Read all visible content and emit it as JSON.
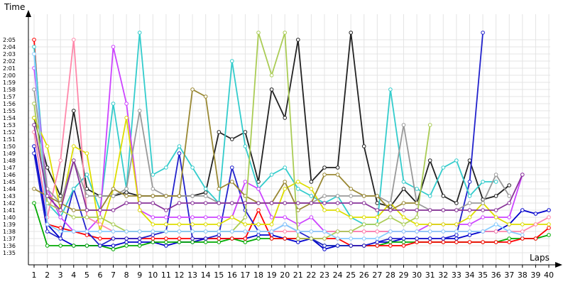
{
  "chart_data": {
    "type": "line",
    "title": "",
    "xlabel": "Laps",
    "ylabel": "Time",
    "xlim": [
      1,
      40
    ],
    "ylim_seconds": [
      95,
      126
    ],
    "x_ticks": [
      "1",
      "2",
      "3",
      "4",
      "5",
      "6",
      "7",
      "8",
      "9",
      "10",
      "11",
      "12",
      "13",
      "14",
      "15",
      "16",
      "17",
      "18",
      "19",
      "20",
      "21",
      "22",
      "23",
      "24",
      "25",
      "26",
      "27",
      "28",
      "29",
      "30",
      "31",
      "32",
      "33",
      "34",
      "35",
      "36",
      "37",
      "38",
      "39",
      "40"
    ],
    "y_ticks": [
      "1:35",
      "1:36",
      "1:37",
      "1:38",
      "1:39",
      "1:40",
      "1:41",
      "1:42",
      "1:43",
      "1:44",
      "1:45",
      "1:46",
      "1:47",
      "1:48",
      "1:49",
      "1:50",
      "1:51",
      "1:52",
      "1:53",
      "1:54",
      "1:55",
      "1:56",
      "1:57",
      "1:58",
      "1:59",
      "2:00",
      "2:01",
      "2:02",
      "2:03",
      "2:04",
      "2:05"
    ],
    "grid": true,
    "legend": "none",
    "series": [
      {
        "color": "#0000cc",
        "x": [
          1,
          2,
          3,
          4,
          5,
          6,
          7,
          8,
          9,
          10,
          11,
          12,
          13,
          14,
          15,
          16,
          17,
          18,
          19,
          20,
          21,
          22,
          23,
          24,
          25,
          26,
          27,
          28,
          29,
          30,
          31,
          32,
          33,
          34,
          35,
          36,
          37,
          38,
          39,
          40
        ],
        "y": [
          110,
          99,
          97,
          96,
          96,
          96,
          96,
          96.5,
          96.5,
          96.5,
          96,
          96.5,
          96.5,
          97,
          97,
          97,
          97,
          97.5,
          97.5,
          97,
          96.5,
          97,
          95.5,
          96,
          96,
          96,
          96.5,
          96.5,
          97,
          97,
          97,
          97,
          97,
          97.5,
          98,
          98,
          99,
          101,
          100.5,
          101
        ]
      },
      {
        "color": "#00aa00",
        "x": [
          1,
          2,
          3,
          4,
          5,
          6,
          7,
          8,
          9,
          10,
          11,
          12,
          13,
          14,
          15,
          16,
          17,
          18,
          19,
          20,
          21,
          22,
          23,
          24,
          25,
          26,
          27,
          28,
          29,
          30,
          31,
          32,
          33,
          34,
          35,
          36,
          37,
          38,
          39,
          40
        ],
        "y": [
          102,
          96,
          96,
          96,
          96,
          96,
          95.5,
          96,
          96,
          96.5,
          96.5,
          96.5,
          96.5,
          96.5,
          96.5,
          97,
          96.5,
          97,
          97,
          97,
          97,
          97,
          96,
          96,
          96,
          96,
          96,
          96.5,
          96.5,
          96.5,
          96.5,
          96.5,
          96.5,
          96.5,
          96.5,
          96.5,
          97,
          97,
          97,
          97.5
        ]
      },
      {
        "color": "#ff0000",
        "x": [
          1,
          2,
          3,
          4,
          5,
          6,
          7,
          8,
          9,
          10,
          11,
          12,
          13,
          14,
          15,
          16,
          17,
          18,
          19,
          20,
          21,
          22,
          23,
          24,
          25,
          26,
          27,
          28,
          29,
          30,
          31,
          32,
          33,
          34,
          35,
          36,
          37,
          38,
          39,
          40
        ],
        "y": [
          125,
          99,
          98.5,
          98,
          97.5,
          97,
          97,
          97,
          97,
          97,
          97,
          97,
          97,
          97,
          97,
          97,
          97,
          101,
          97,
          97,
          97,
          97,
          97,
          97,
          96,
          96,
          96,
          96,
          96,
          96.5,
          96.5,
          96.5,
          96.5,
          96.5,
          96.5,
          96.5,
          96.5,
          97,
          97,
          98.5
        ]
      },
      {
        "color": "#222222",
        "x": [
          1,
          2,
          3,
          4,
          5,
          6,
          7,
          8,
          9,
          10,
          11,
          12,
          13,
          14,
          15,
          16,
          17,
          18,
          19,
          20,
          21,
          22,
          23,
          24,
          25,
          26,
          27,
          28,
          29,
          30,
          31,
          32,
          33,
          34,
          35,
          36,
          37,
          38
        ],
        "y": [
          114,
          107,
          103,
          115,
          104,
          103,
          103,
          103.5,
          103,
          103,
          103,
          103,
          103,
          103.5,
          112,
          111,
          112,
          105,
          118,
          114,
          125,
          105,
          107,
          107,
          126,
          110,
          102,
          101.5,
          104,
          102,
          108,
          103,
          102,
          108,
          102.5,
          103,
          104.5,
          null
        ]
      },
      {
        "color": "#2222cc",
        "x": [
          1,
          2,
          3,
          4,
          5,
          6,
          7,
          8,
          9,
          10,
          11,
          12,
          13,
          14,
          15,
          16,
          17,
          18,
          19,
          20,
          21,
          22,
          23,
          24,
          25,
          26,
          27,
          28,
          29,
          30,
          31,
          32,
          33,
          34,
          35
        ],
        "y": [
          109,
          98,
          97,
          104,
          98,
          96,
          97,
          97,
          97,
          97.5,
          98,
          109,
          97,
          97,
          97.5,
          107,
          101,
          98,
          98,
          99,
          98,
          97,
          96,
          96,
          96,
          96,
          96.5,
          97,
          97,
          97,
          97,
          97,
          97.5,
          105,
          126
        ]
      },
      {
        "color": "#33cccc",
        "x": [
          1,
          2,
          3,
          4,
          5,
          6,
          7,
          8,
          9,
          10,
          11,
          12,
          13,
          14,
          15,
          16,
          17,
          18,
          19,
          20,
          21,
          22,
          23,
          24,
          25,
          26,
          27,
          28,
          29,
          30,
          31,
          32,
          33,
          34,
          35,
          36
        ],
        "y": [
          124,
          102,
          100,
          104,
          106,
          101,
          116,
          104,
          126,
          106,
          107,
          110,
          107,
          104,
          102,
          122,
          110,
          104,
          106,
          107,
          104,
          103,
          102,
          103,
          100,
          99,
          99,
          118,
          105,
          104,
          103,
          107,
          108,
          103,
          105,
          105
        ]
      },
      {
        "color": "#cc44ff",
        "x": [
          1,
          2,
          3,
          4,
          5,
          6,
          7,
          8,
          9,
          10,
          11,
          12,
          13,
          14,
          15,
          16,
          17,
          18,
          19,
          20,
          21,
          22,
          23,
          24,
          25,
          26,
          27,
          28,
          29,
          30,
          31,
          32,
          33,
          34,
          35,
          36,
          37,
          38
        ],
        "y": [
          121,
          104,
          100,
          98,
          98,
          100,
          124,
          116,
          101,
          100,
          100,
          100,
          100,
          100,
          100,
          100,
          105,
          104,
          100,
          100,
          99,
          100,
          98,
          98,
          98,
          98,
          98,
          98,
          98,
          98,
          99,
          99,
          99,
          99,
          100,
          100,
          100,
          106
        ]
      },
      {
        "color": "#dddd00",
        "x": [
          1,
          2,
          3,
          4,
          5,
          6,
          7,
          8,
          9,
          10,
          11,
          12,
          13,
          14,
          15,
          16,
          17,
          18,
          19,
          20,
          21,
          22,
          23,
          24,
          25,
          26,
          27,
          28,
          29,
          30,
          31,
          32,
          33,
          34,
          35,
          36,
          37,
          38,
          39,
          40
        ],
        "y": [
          114,
          110,
          101,
          110,
          109,
          98,
          104,
          114,
          101,
          99,
          99,
          99,
          99,
          99,
          99,
          100,
          99,
          99,
          99,
          104,
          105,
          104,
          101,
          101,
          100,
          100,
          100,
          102,
          100,
          99,
          99,
          99,
          99,
          100,
          102,
          100,
          99,
          99,
          99,
          99
        ]
      },
      {
        "color": "#ff88aa",
        "x": [
          1,
          2,
          3,
          4,
          5,
          6,
          7,
          8,
          9,
          10,
          11,
          12,
          13,
          14,
          15,
          16,
          17,
          18,
          19,
          20,
          21,
          22,
          23,
          24,
          25,
          26,
          27,
          28,
          29,
          30,
          31,
          32,
          33,
          34,
          35,
          36,
          37,
          38,
          39,
          40
        ],
        "y": [
          112,
          100,
          108,
          125,
          100,
          99,
          98,
          98,
          98,
          98,
          98,
          98,
          98,
          98,
          98,
          98,
          98,
          98,
          98,
          98,
          98,
          98,
          98,
          98,
          98,
          98,
          98,
          98,
          98,
          98,
          98,
          98,
          98,
          98,
          98,
          98,
          98,
          98,
          99,
          100
        ]
      },
      {
        "color": "#999999",
        "x": [
          1,
          2,
          3,
          4,
          5,
          6,
          7,
          8,
          9,
          10,
          11,
          12,
          13,
          14,
          15,
          16,
          17,
          18,
          19,
          20,
          21,
          22,
          23,
          24,
          25,
          26,
          27,
          28,
          29,
          30,
          31,
          32,
          33,
          34,
          35,
          36,
          37
        ],
        "y": [
          118,
          104,
          102,
          108,
          103,
          103,
          103,
          104,
          115,
          104,
          103,
          103,
          103,
          103,
          102,
          102,
          102,
          102,
          102,
          102,
          102,
          102,
          103,
          103,
          103,
          103,
          103,
          102,
          113,
          102,
          101,
          101,
          101,
          102,
          102,
          106,
          103
        ]
      },
      {
        "color": "#998833",
        "x": [
          1,
          2,
          3,
          4,
          5,
          6,
          7,
          8,
          9,
          10,
          11,
          12,
          13,
          14,
          15,
          16,
          17,
          18,
          19,
          20,
          21,
          22,
          23,
          24,
          25,
          26,
          27,
          28,
          29,
          30
        ],
        "y": [
          104,
          103,
          102,
          101,
          101,
          101,
          104,
          103,
          103,
          103,
          103,
          103,
          118,
          117,
          104,
          105,
          103,
          102,
          102,
          105,
          101,
          102,
          106,
          106,
          104,
          103,
          103,
          101,
          102,
          102
        ]
      },
      {
        "color": "#aacc55",
        "x": [
          1,
          2,
          3,
          4,
          5,
          6,
          7,
          8,
          9,
          10,
          11,
          12,
          13,
          14,
          15,
          16,
          17,
          18,
          19,
          20,
          21,
          22,
          23,
          24,
          25,
          26,
          27,
          28,
          29,
          30,
          31
        ],
        "y": [
          116,
          102,
          101,
          100,
          100,
          100,
          99,
          98,
          98,
          98,
          98,
          98,
          98,
          98,
          98,
          98,
          100,
          126,
          120,
          126,
          97,
          97,
          97,
          98,
          98,
          99,
          99,
          100,
          99,
          100,
          113
        ]
      },
      {
        "color": "#88ccff",
        "x": [
          1,
          2,
          3,
          4,
          5,
          6,
          7,
          8,
          9,
          10,
          11,
          12,
          13,
          14,
          15,
          16,
          17,
          18,
          19,
          20,
          21,
          22,
          23,
          24,
          25,
          26,
          27,
          28,
          29,
          30,
          31,
          32,
          33,
          34,
          35,
          36,
          37,
          38
        ],
        "y": [
          123,
          99,
          98,
          98,
          98,
          98,
          98,
          98,
          98,
          98,
          98,
          98,
          98,
          98,
          98,
          98,
          98,
          98,
          98,
          99,
          98,
          98,
          98,
          97,
          97,
          97,
          97,
          98,
          98,
          98,
          98,
          98,
          98,
          98,
          98,
          99,
          98,
          97.5
        ]
      },
      {
        "color": "#883399",
        "x": [
          1,
          2,
          3,
          4,
          5,
          6,
          7,
          8,
          9,
          10,
          11,
          12,
          13,
          14,
          15,
          16,
          17,
          18,
          19,
          20,
          21,
          22,
          23,
          24,
          25,
          26,
          27,
          28,
          29,
          30,
          31,
          32,
          33,
          34,
          35,
          36,
          37,
          38
        ],
        "y": [
          113,
          103,
          101,
          108,
          101,
          101,
          101,
          102,
          102,
          102,
          101,
          102,
          102,
          102,
          102,
          102,
          102,
          102,
          102,
          102,
          102,
          102,
          102,
          102,
          102,
          102,
          101,
          101,
          101,
          101,
          101,
          101,
          101,
          101,
          101,
          101,
          102,
          106
        ]
      }
    ]
  }
}
